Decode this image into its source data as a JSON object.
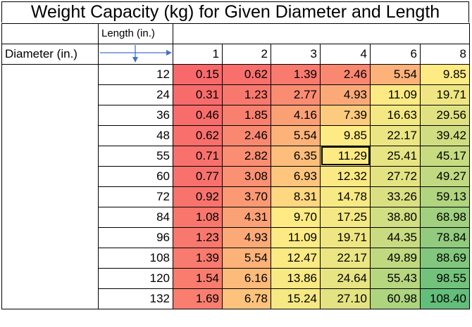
{
  "title": "Weight Capacity (kg) for Given Diameter and Length",
  "header": {
    "length_label": "Length (in.)",
    "diameter_label": "Diameter (in.)",
    "lengths": [
      "1",
      "2",
      "3",
      "4",
      "6",
      "8"
    ]
  },
  "rows": [
    {
      "diameter": "12",
      "values": [
        "0.15",
        "0.62",
        "1.39",
        "2.46",
        "5.54",
        "9.85"
      ]
    },
    {
      "diameter": "24",
      "values": [
        "0.31",
        "1.23",
        "2.77",
        "4.93",
        "11.09",
        "19.71"
      ]
    },
    {
      "diameter": "36",
      "values": [
        "0.46",
        "1.85",
        "4.16",
        "7.39",
        "16.63",
        "29.56"
      ]
    },
    {
      "diameter": "48",
      "values": [
        "0.62",
        "2.46",
        "5.54",
        "9.85",
        "22.17",
        "39.42"
      ]
    },
    {
      "diameter": "55",
      "values": [
        "0.71",
        "2.82",
        "6.35",
        "11.29",
        "25.41",
        "45.17"
      ]
    },
    {
      "diameter": "60",
      "values": [
        "0.77",
        "3.08",
        "6.93",
        "12.32",
        "27.72",
        "49.27"
      ]
    },
    {
      "diameter": "72",
      "values": [
        "0.92",
        "3.70",
        "8.31",
        "14.78",
        "33.26",
        "59.13"
      ]
    },
    {
      "diameter": "84",
      "values": [
        "1.08",
        "4.31",
        "9.70",
        "17.25",
        "38.80",
        "68.98"
      ]
    },
    {
      "diameter": "96",
      "values": [
        "1.23",
        "4.93",
        "11.09",
        "19.71",
        "44.35",
        "78.84"
      ]
    },
    {
      "diameter": "108",
      "values": [
        "1.39",
        "5.54",
        "12.47",
        "22.17",
        "49.89",
        "88.69"
      ]
    },
    {
      "diameter": "120",
      "values": [
        "1.54",
        "6.16",
        "13.86",
        "24.64",
        "55.43",
        "98.55"
      ]
    },
    {
      "diameter": "132",
      "values": [
        "1.69",
        "6.78",
        "15.24",
        "27.10",
        "60.98",
        "108.40"
      ]
    }
  ],
  "selected_cell": {
    "row": 4,
    "col": 3
  },
  "colors": {
    "low": "#f8696b",
    "mid": "#ffeb84",
    "high": "#63be7b",
    "arrow": "#4472c4"
  }
}
